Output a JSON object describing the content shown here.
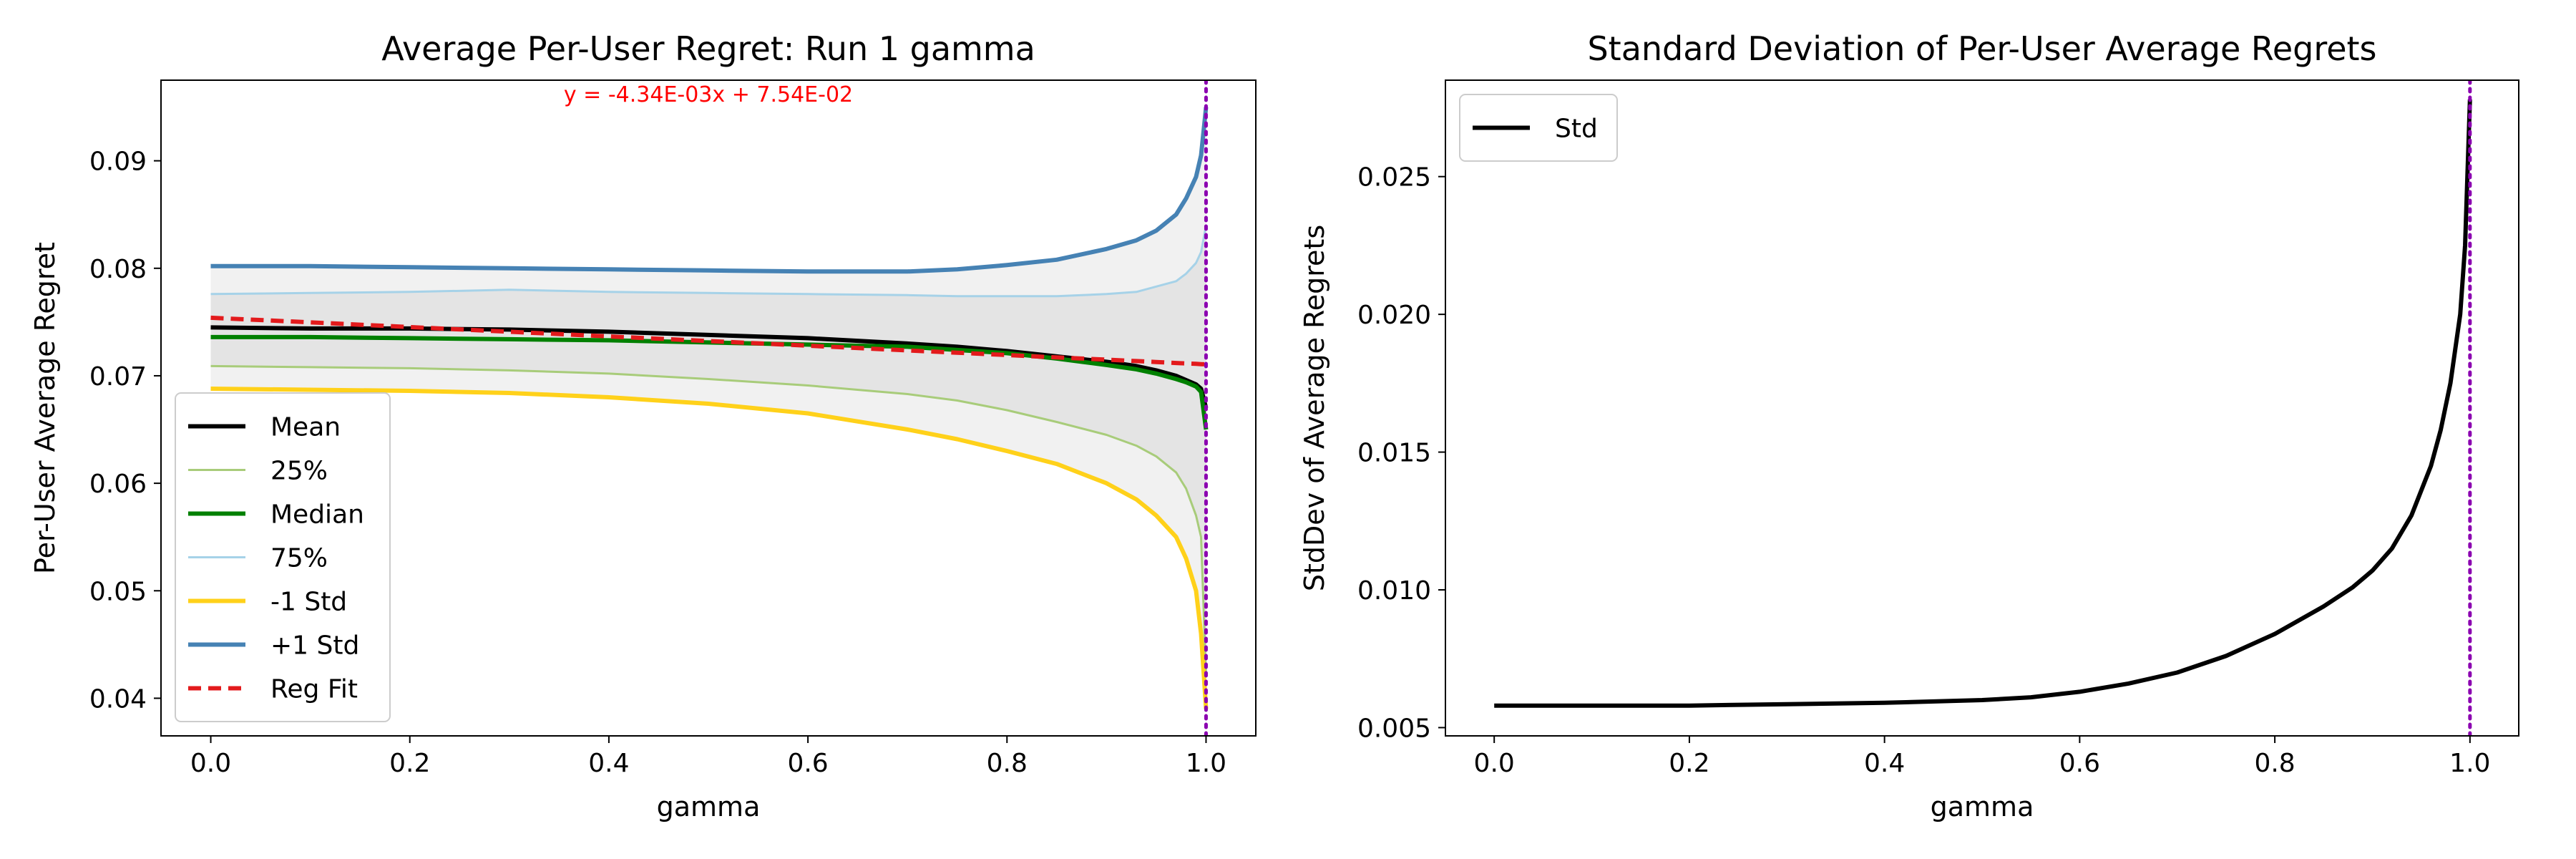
{
  "chart_data": [
    {
      "type": "line",
      "title": "Average Per-User Regret: Run 1 gamma",
      "xlabel": "gamma",
      "ylabel": "Per-User Average Regret",
      "xlim": [
        -0.05,
        1.05
      ],
      "ylim": [
        0.0365,
        0.0975
      ],
      "xticks": [
        0.0,
        0.2,
        0.4,
        0.6,
        0.8,
        1.0
      ],
      "xtick_labels": [
        "0.0",
        "0.2",
        "0.4",
        "0.6",
        "0.8",
        "1.0"
      ],
      "yticks": [
        0.04,
        0.05,
        0.06,
        0.07,
        0.08,
        0.09
      ],
      "ytick_labels": [
        "0.04",
        "0.05",
        "0.06",
        "0.07",
        "0.08",
        "0.09"
      ],
      "annotation": "y = -4.34E-03x + 7.54E-02",
      "annotation_color": "#ff0000",
      "vline_x": 1.0,
      "vline_color": "#8b00b0",
      "legend_position": "lower-left",
      "x": [
        0.0,
        0.1,
        0.2,
        0.3,
        0.4,
        0.5,
        0.6,
        0.7,
        0.75,
        0.8,
        0.85,
        0.9,
        0.93,
        0.95,
        0.97,
        0.98,
        0.99,
        0.995,
        1.0
      ],
      "series": [
        {
          "name": "Mean",
          "color": "#000000",
          "width": 3,
          "values": [
            0.0745,
            0.0744,
            0.0744,
            0.0743,
            0.0741,
            0.0738,
            0.0735,
            0.073,
            0.0727,
            0.0723,
            0.0718,
            0.0713,
            0.0709,
            0.0705,
            0.07,
            0.0696,
            0.0692,
            0.0688,
            0.067
          ]
        },
        {
          "name": "25%",
          "color": "#a8cc7a",
          "width": 1.5,
          "values": [
            0.0709,
            0.0708,
            0.0707,
            0.0705,
            0.0702,
            0.0697,
            0.0691,
            0.0683,
            0.0677,
            0.0668,
            0.0657,
            0.0645,
            0.0635,
            0.0625,
            0.061,
            0.0595,
            0.057,
            0.055,
            0.042
          ]
        },
        {
          "name": "Median",
          "color": "#008000",
          "width": 3,
          "values": [
            0.0736,
            0.0736,
            0.0735,
            0.0734,
            0.0733,
            0.0731,
            0.0729,
            0.0727,
            0.0724,
            0.0721,
            0.0716,
            0.071,
            0.0706,
            0.0702,
            0.0697,
            0.0694,
            0.069,
            0.0685,
            0.065
          ]
        },
        {
          "name": "75%",
          "color": "#a6d2e8",
          "width": 1.5,
          "values": [
            0.0776,
            0.0777,
            0.0778,
            0.078,
            0.0778,
            0.0777,
            0.0776,
            0.0775,
            0.0774,
            0.0774,
            0.0774,
            0.0776,
            0.0778,
            0.0783,
            0.0788,
            0.0795,
            0.0805,
            0.0815,
            0.084
          ]
        },
        {
          "name": "-1 Std",
          "color": "#ffd11a",
          "width": 3,
          "values": [
            0.0688,
            0.0687,
            0.0686,
            0.0684,
            0.068,
            0.0674,
            0.0665,
            0.065,
            0.0641,
            0.063,
            0.0618,
            0.06,
            0.0585,
            0.057,
            0.055,
            0.053,
            0.05,
            0.046,
            0.039
          ]
        },
        {
          "name": "+1 Std",
          "color": "#4682b4",
          "width": 3,
          "values": [
            0.0802,
            0.0802,
            0.0801,
            0.08,
            0.0799,
            0.0798,
            0.0797,
            0.0797,
            0.0799,
            0.0803,
            0.0808,
            0.0818,
            0.0826,
            0.0835,
            0.085,
            0.0865,
            0.0885,
            0.0905,
            0.095
          ]
        },
        {
          "name": "Reg Fit",
          "color": "#e31a1c",
          "width": 3,
          "dashed": true,
          "values": [
            0.0754,
            0.07497,
            0.07453,
            0.0741,
            0.07366,
            0.07323,
            0.0728,
            0.07236,
            0.07215,
            0.07193,
            0.07171,
            0.0715,
            0.07137,
            0.07128,
            0.07119,
            0.07115,
            0.07111,
            0.07108,
            0.07106
          ]
        }
      ],
      "bands": [
        {
          "lower": "-1 Std",
          "upper": "+1 Std",
          "color": "#e6e6e6"
        },
        {
          "lower": "25%",
          "upper": "75%",
          "color": "#d9d9d9"
        }
      ]
    },
    {
      "type": "line",
      "title": "Standard Deviation of Per-User Average Regrets",
      "xlabel": "gamma",
      "ylabel": "StdDev of Average Regrets",
      "xlim": [
        -0.05,
        1.05
      ],
      "ylim": [
        0.0047,
        0.0285
      ],
      "xticks": [
        0.0,
        0.2,
        0.4,
        0.6,
        0.8,
        1.0
      ],
      "xtick_labels": [
        "0.0",
        "0.2",
        "0.4",
        "0.6",
        "0.8",
        "1.0"
      ],
      "yticks": [
        0.005,
        0.01,
        0.015,
        0.02,
        0.025
      ],
      "ytick_labels": [
        "0.005",
        "0.010",
        "0.015",
        "0.020",
        "0.025"
      ],
      "vline_x": 1.0,
      "vline_color": "#8b00b0",
      "legend_position": "top-left",
      "x": [
        0.0,
        0.1,
        0.2,
        0.3,
        0.4,
        0.5,
        0.55,
        0.6,
        0.65,
        0.7,
        0.75,
        0.8,
        0.85,
        0.88,
        0.9,
        0.92,
        0.94,
        0.96,
        0.97,
        0.98,
        0.99,
        0.995,
        1.0
      ],
      "series": [
        {
          "name": "Std",
          "color": "#000000",
          "width": 3,
          "values": [
            0.0058,
            0.0058,
            0.0058,
            0.00585,
            0.0059,
            0.006,
            0.0061,
            0.0063,
            0.0066,
            0.007,
            0.0076,
            0.0084,
            0.0094,
            0.0101,
            0.0107,
            0.0115,
            0.0127,
            0.0145,
            0.0158,
            0.0175,
            0.02,
            0.0225,
            0.0278
          ]
        }
      ]
    }
  ]
}
